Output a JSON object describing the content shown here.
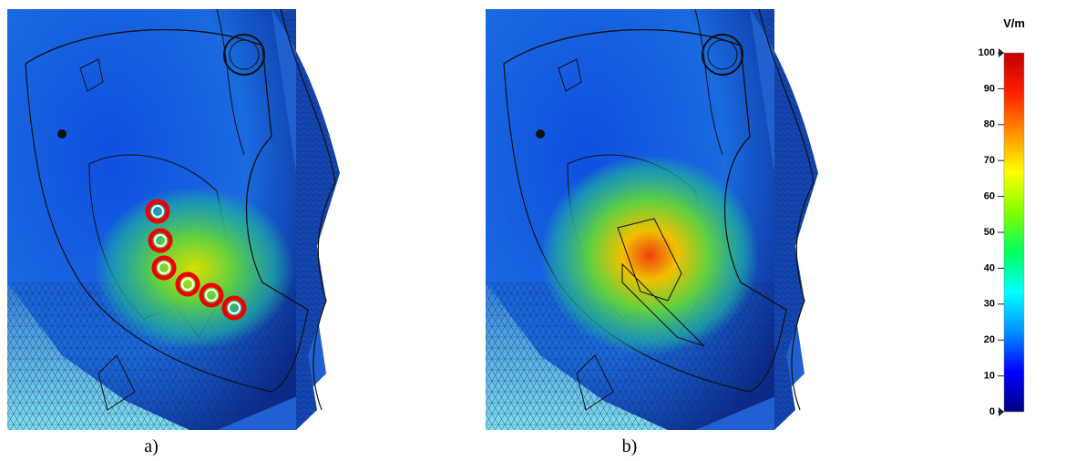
{
  "panels": [
    {
      "label": "a)"
    },
    {
      "label": "b)"
    }
  ],
  "colorbar": {
    "title": "V/m",
    "lim": [
      0,
      100
    ],
    "ticks": [
      0,
      10,
      20,
      30,
      40,
      50,
      60,
      70,
      80,
      90,
      100
    ],
    "colors": [
      "#000080",
      "#0000ff",
      "#0090ff",
      "#00ffff",
      "#00ff60",
      "#80ff00",
      "#ffff00",
      "#ff9000",
      "#ff2000",
      "#c00000"
    ]
  }
}
